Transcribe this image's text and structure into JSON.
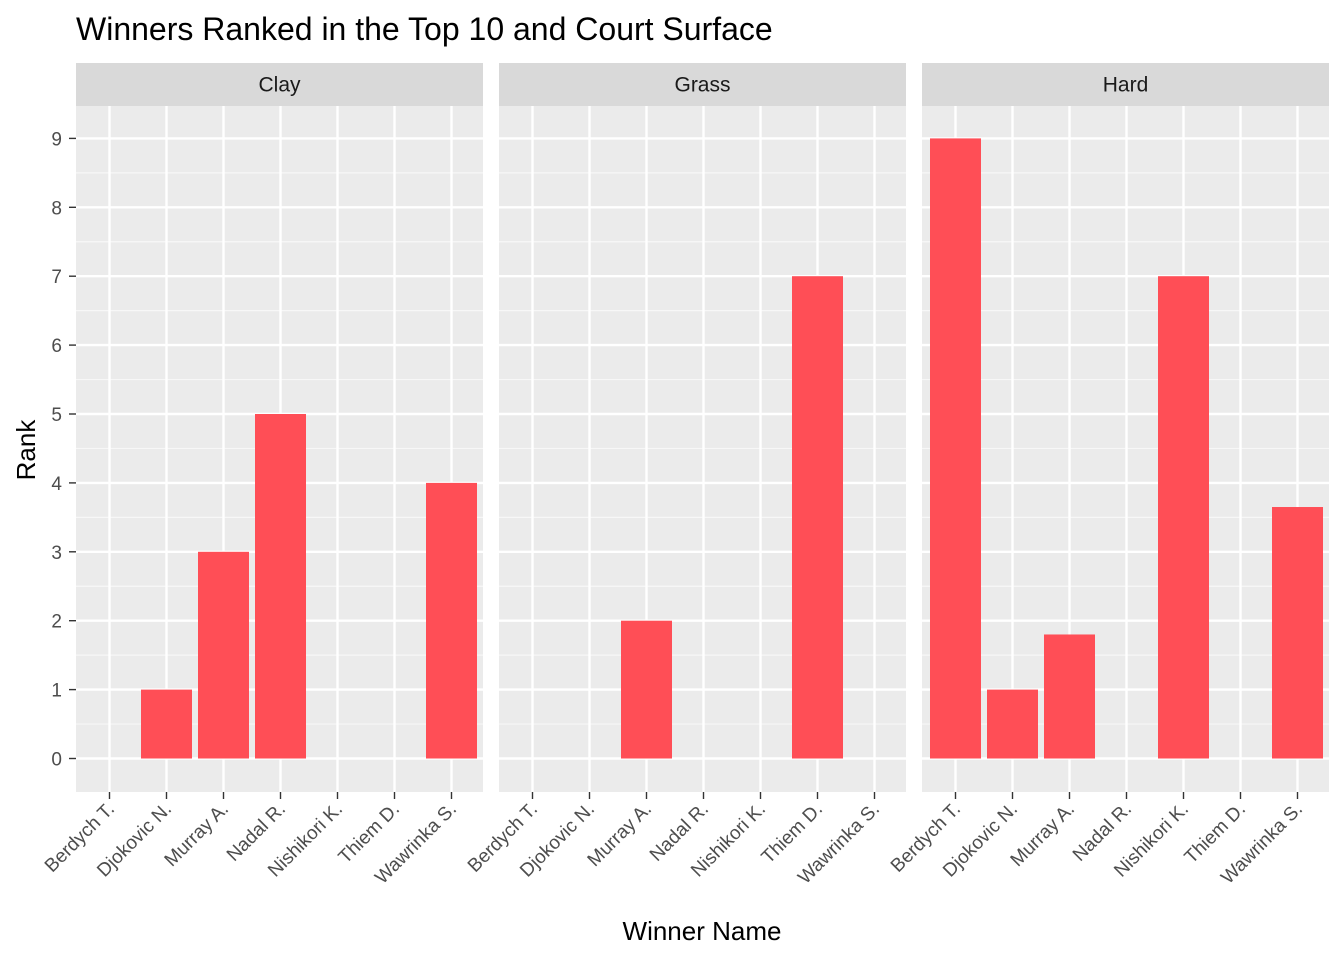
{
  "chart_data": {
    "type": "bar",
    "title": "Winners Ranked in the Top 10 and Court Surface",
    "xlabel": "Winner Name",
    "ylabel": "Rank",
    "ylim": [
      -0.5,
      9.5
    ],
    "yticks": [
      "0",
      "1",
      "2",
      "3",
      "4",
      "5",
      "6",
      "7",
      "8",
      "9"
    ],
    "grid": true,
    "colors": {
      "bar": "#FF4E56",
      "panel": "#EBEBEB",
      "strip": "#D9D9D9",
      "grid_major": "#FFFFFF",
      "grid_minor": "#F7F7F7"
    },
    "categories": [
      "Berdych T.",
      "Djokovic N.",
      "Murray A.",
      "Nadal R.",
      "Nishikori K.",
      "Thiem D.",
      "Wawrinka S."
    ],
    "facets": [
      {
        "name": "Clay",
        "values": [
          null,
          1,
          3,
          5,
          null,
          null,
          4
        ]
      },
      {
        "name": "Grass",
        "values": [
          null,
          null,
          2,
          null,
          null,
          7,
          null
        ]
      },
      {
        "name": "Hard",
        "values": [
          9,
          1,
          1.8,
          null,
          7,
          null,
          3.65
        ]
      }
    ]
  }
}
